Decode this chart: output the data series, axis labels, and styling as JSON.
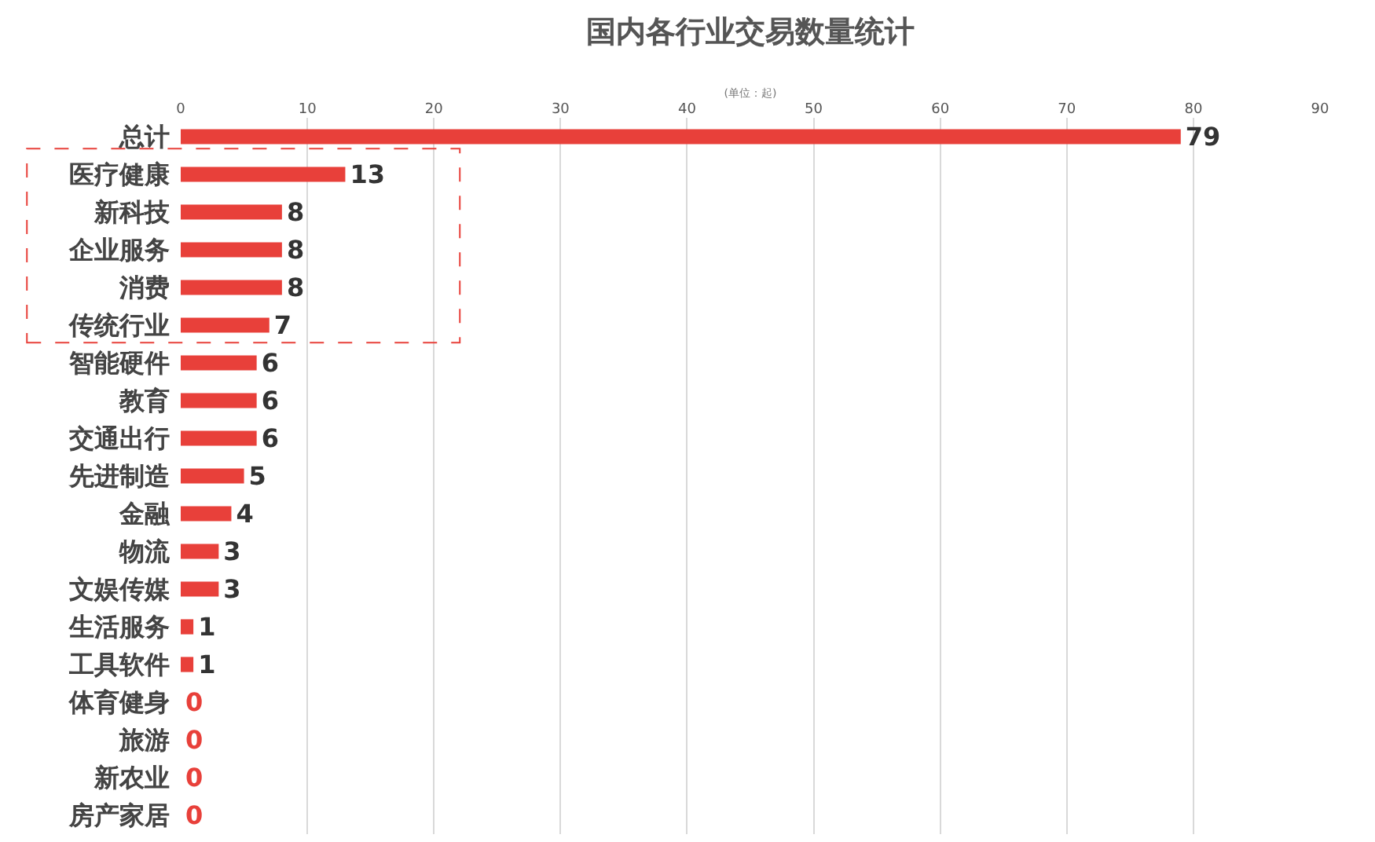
{
  "chart_data": {
    "type": "bar",
    "orientation": "horizontal",
    "title": "国内各行业交易数量统计",
    "xlabel": "(单位：起)",
    "categories": [
      "总计",
      "医疗健康",
      "新科技",
      "企业服务",
      "消费",
      "传统行业",
      "智能硬件",
      "教育",
      "交通出行",
      "先进制造",
      "金融",
      "物流",
      "文娱传媒",
      "生活服务",
      "工具软件",
      "体育健身",
      "旅游",
      "新农业",
      "房产家居"
    ],
    "values": [
      79,
      13,
      8,
      8,
      8,
      7,
      6,
      6,
      6,
      5,
      4,
      3,
      3,
      1,
      1,
      0,
      0,
      0,
      0
    ],
    "color": "#e8403a",
    "data_labels": true,
    "xlim": [
      0,
      90
    ],
    "xticks": [
      0,
      10,
      20,
      30,
      40,
      50,
      60,
      70,
      80,
      90
    ],
    "grid": "x"
  }
}
